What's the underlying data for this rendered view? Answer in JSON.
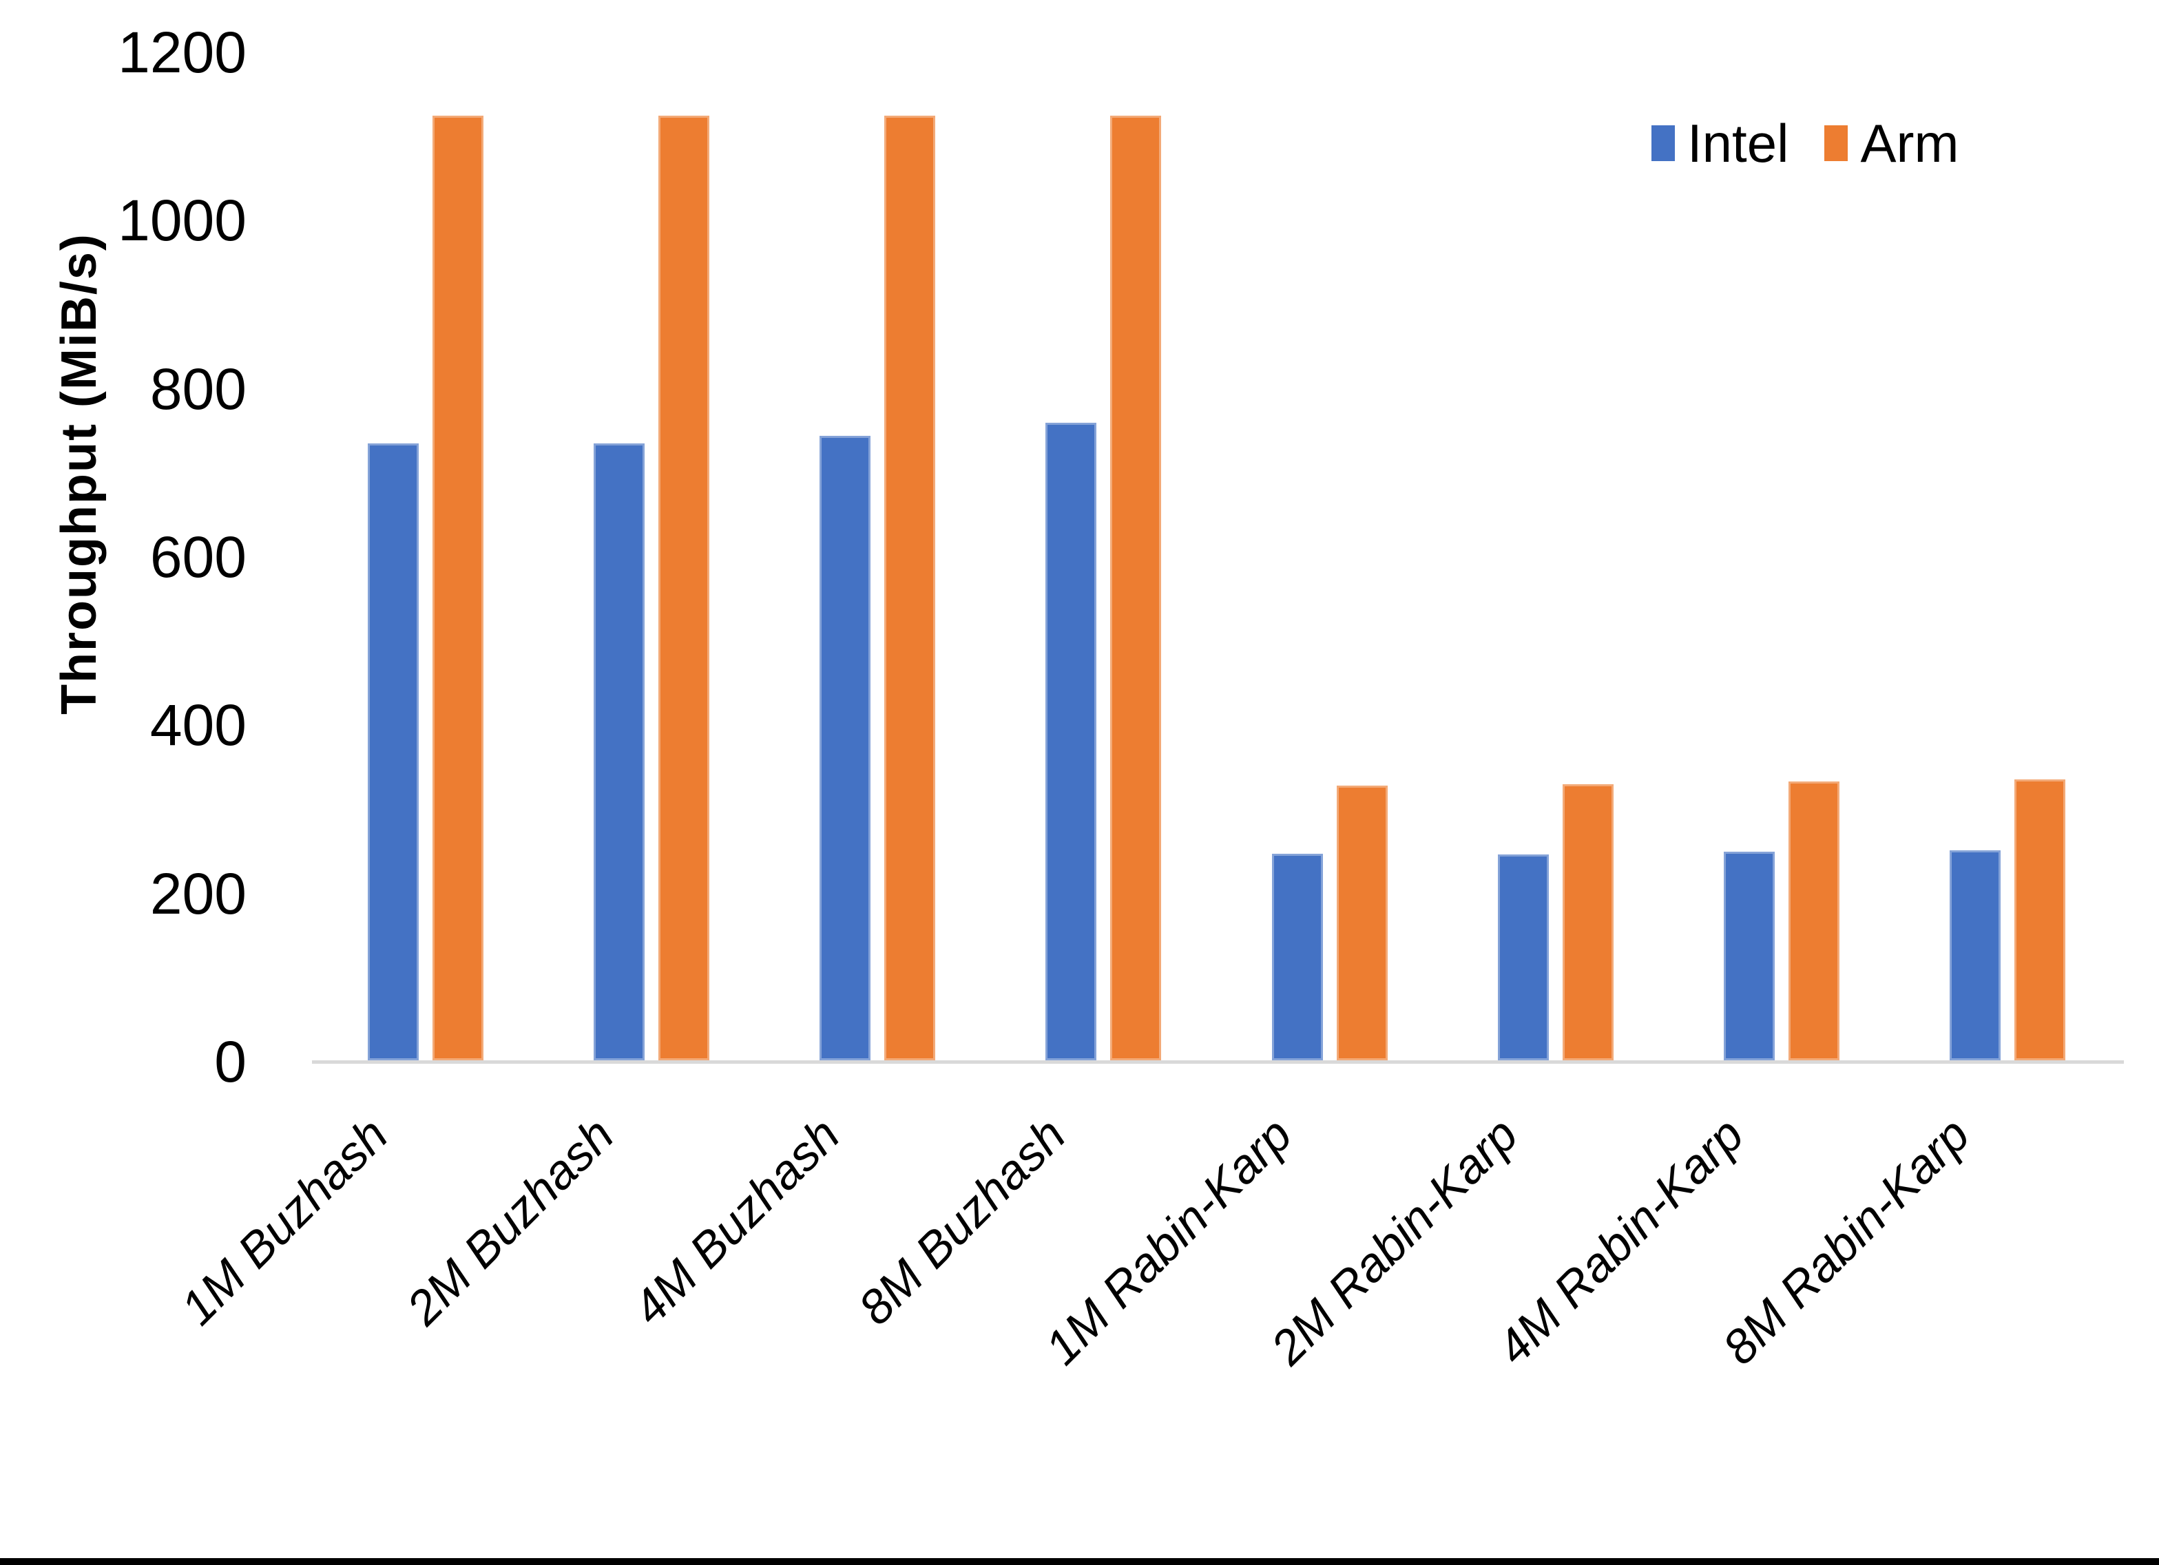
{
  "chart_data": {
    "type": "bar",
    "title": "",
    "ylabel": "Throughput (MiB/s)",
    "xlabel": "",
    "ylim": [
      0,
      1200
    ],
    "yticks": [
      0,
      200,
      400,
      600,
      800,
      1000,
      1200
    ],
    "grid": false,
    "legend_position": "top-right",
    "axis_line_color": "#d9d9d9",
    "categories": [
      "1M Buzhash",
      "2M Buzhash",
      "4M Buzhash",
      "8M Buzhash",
      "1M Rabin-Karp",
      "2M Rabin-Karp",
      "4M Rabin-Karp",
      "8M Rabin-Karp"
    ],
    "series": [
      {
        "name": "Intel",
        "color": "#4472C4",
        "values": [
          735,
          735,
          744,
          760,
          247,
          246,
          250,
          251
        ]
      },
      {
        "name": "Arm",
        "color": "#ED7D31",
        "values": [
          1125,
          1125,
          1125,
          1125,
          328,
          330,
          333,
          336
        ]
      }
    ]
  }
}
